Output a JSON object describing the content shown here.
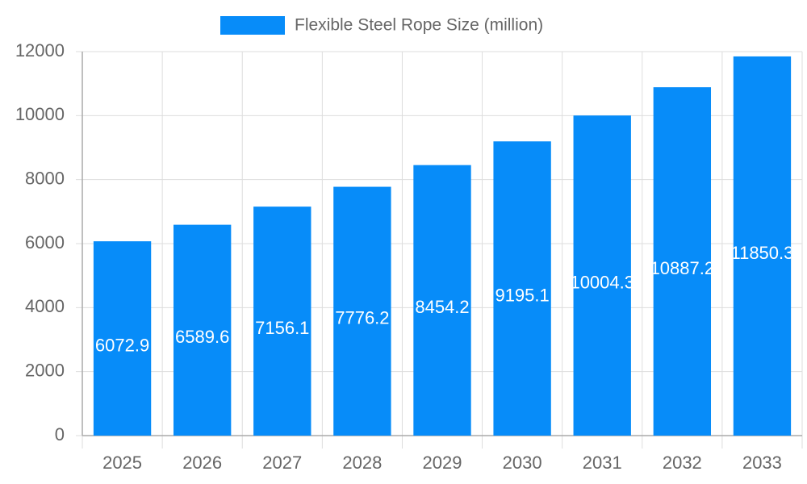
{
  "chart_data": {
    "type": "bar",
    "categories": [
      "2025",
      "2026",
      "2027",
      "2028",
      "2029",
      "2030",
      "2031",
      "2032",
      "2033"
    ],
    "series": [
      {
        "name": "Flexible Steel Rope Size (million)",
        "color": "#078cf9",
        "values": [
          6072.9,
          6589.6,
          7156.1,
          7776.2,
          8454.2,
          9195.1,
          10004.3,
          10887.2,
          11850.3
        ]
      }
    ],
    "ylim": [
      0,
      12000
    ],
    "yticks": [
      0,
      2000,
      4000,
      6000,
      8000,
      10000,
      12000
    ],
    "grid": true
  }
}
